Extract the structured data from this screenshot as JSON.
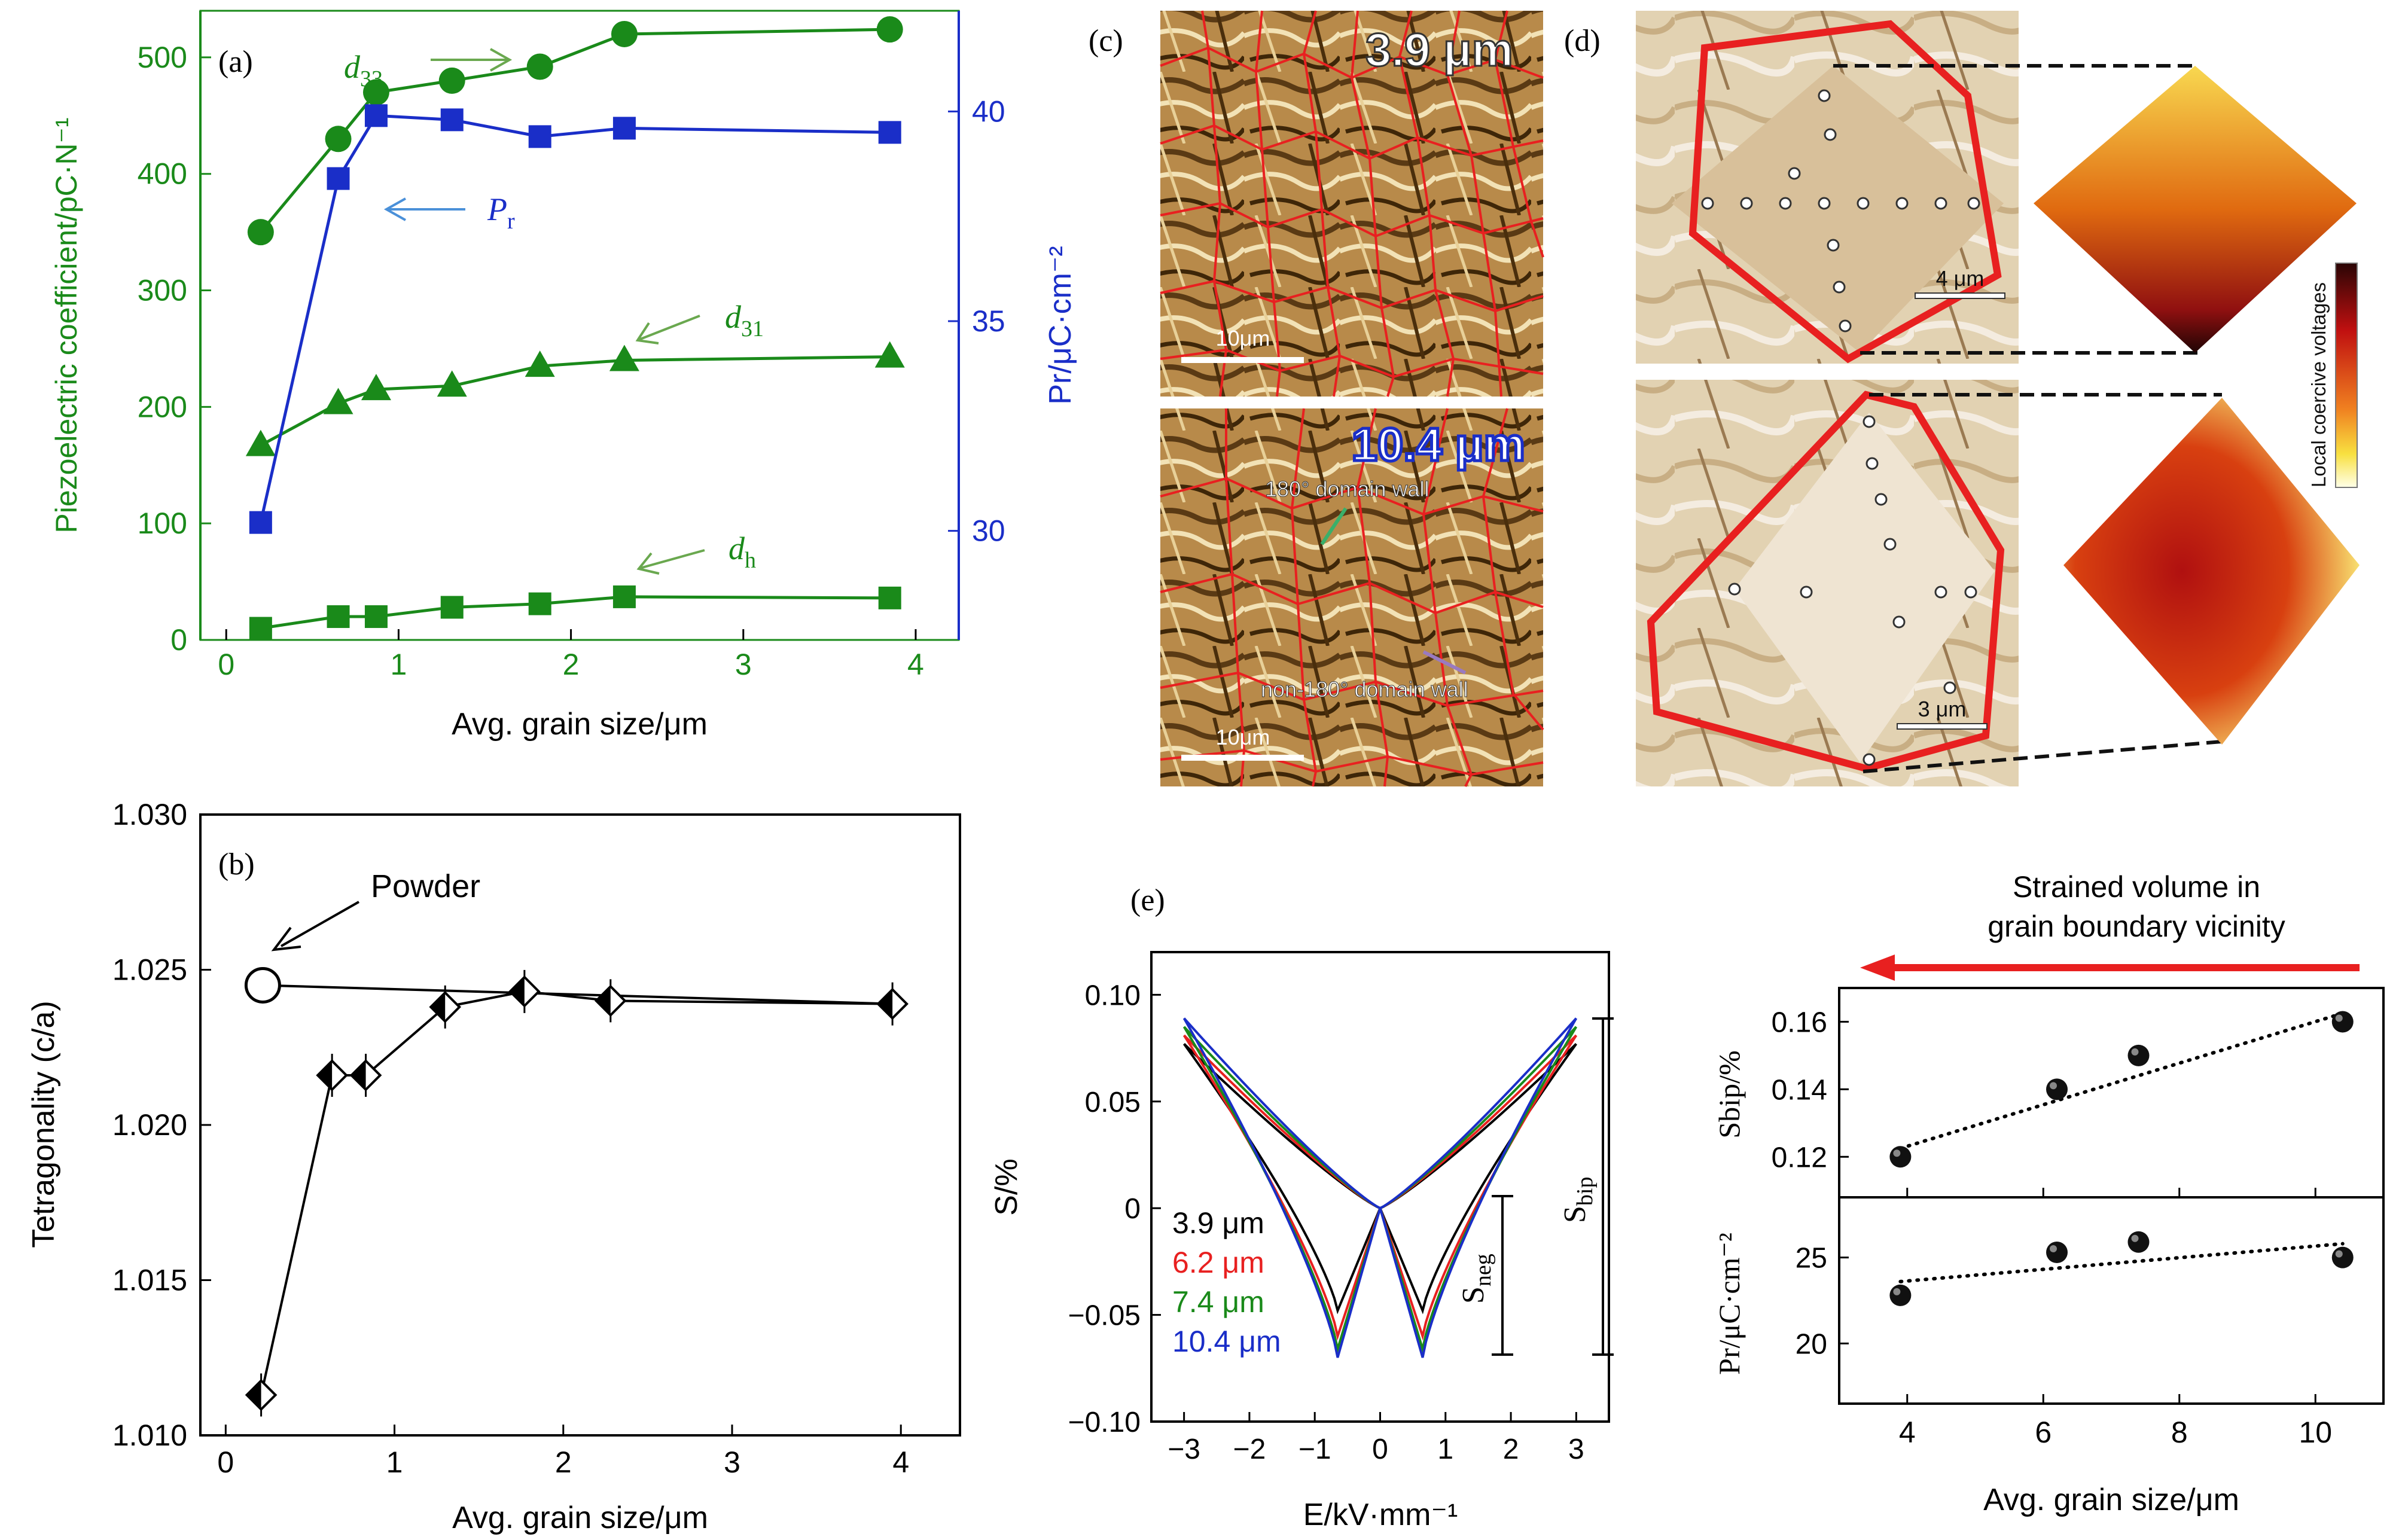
{
  "panel_labels": {
    "a": "(a)",
    "b": "(b)",
    "c": "(c)",
    "d": "(d)",
    "e": "(e)"
  },
  "colors": {
    "green": "#1a8a1a",
    "blue": "#1a2ec8",
    "lightblue": "#4a90d9",
    "red": "#e82020",
    "black": "#000000"
  },
  "chart_data": [
    {
      "id": "a",
      "type": "line",
      "xlabel": "Avg. grain size/μm",
      "ylabel_left": "Piezoelectric coefficient/pC·N⁻¹",
      "ylabel_right": "Pr/μC·cm⁻²",
      "xlim": [
        -0.15,
        4.25
      ],
      "ylim_left": [
        0,
        540
      ],
      "ylim_right": [
        27.4,
        42.4
      ],
      "x_ticks": [
        "0",
        "1",
        "2",
        "3",
        "4"
      ],
      "y_ticks_left": [
        "0",
        "100",
        "200",
        "300",
        "400",
        "500"
      ],
      "y_ticks_right": [
        "30",
        "35",
        "40"
      ],
      "series": [
        {
          "name": "d33",
          "axis": "left",
          "marker": "circle",
          "color": "#1a8a1a",
          "x": [
            0.2,
            0.65,
            0.87,
            1.31,
            1.82,
            2.31,
            3.85
          ],
          "y": [
            350,
            430,
            470,
            480,
            492,
            520,
            524
          ]
        },
        {
          "name": "d31",
          "axis": "left",
          "marker": "triangle",
          "color": "#1a8a1a",
          "x": [
            0.2,
            0.65,
            0.87,
            1.31,
            1.82,
            2.31,
            3.85
          ],
          "y": [
            167,
            203,
            215,
            218,
            235,
            240,
            243
          ]
        },
        {
          "name": "dh",
          "axis": "left",
          "marker": "square",
          "color": "#1a8a1a",
          "x": [
            0.2,
            0.65,
            0.87,
            1.31,
            1.82,
            2.31,
            3.85
          ],
          "y": [
            10,
            20,
            20,
            28,
            31,
            37,
            36
          ]
        },
        {
          "name": "Pr",
          "axis": "right",
          "marker": "square",
          "color": "#1a2ec8",
          "x": [
            0.2,
            0.65,
            0.87,
            1.31,
            1.82,
            2.31,
            3.85
          ],
          "y": [
            30.2,
            38.4,
            39.9,
            39.8,
            39.4,
            39.6,
            39.5
          ]
        }
      ],
      "annotations": [
        {
          "label": "d",
          "sub": "33"
        },
        {
          "label": "P",
          "sub": "r"
        },
        {
          "label": "d",
          "sub": "31"
        },
        {
          "label": "d",
          "sub": "h"
        }
      ]
    },
    {
      "id": "b",
      "type": "line",
      "xlabel": "Avg. grain size/μm",
      "ylabel": "Tetragonality (c/a)",
      "xlim": [
        -0.15,
        4.35
      ],
      "ylim": [
        1.01,
        1.03
      ],
      "x_ticks": [
        "0",
        "1",
        "2",
        "3",
        "4"
      ],
      "y_ticks": [
        "1.010",
        "1.015",
        "1.020",
        "1.025",
        "1.030"
      ],
      "series": [
        {
          "marker": "half-diamond",
          "x": [
            0.21,
            0.63,
            0.83,
            1.3,
            1.77,
            2.28,
            3.95
          ],
          "y": [
            1.0113,
            1.0216,
            1.0216,
            1.0238,
            1.0243,
            1.024,
            1.0239
          ]
        }
      ],
      "powder": {
        "x": 0.22,
        "y": 1.0245
      },
      "annotation": "Powder"
    },
    {
      "id": "e",
      "type": "line",
      "xlabel": "E/kV·mm⁻¹",
      "ylabel": "S/%",
      "xlim": [
        -3.5,
        3.5
      ],
      "ylim": [
        -0.1,
        0.12
      ],
      "x_ticks": [
        "−3",
        "−2",
        "−1",
        "0",
        "1",
        "2",
        "3"
      ],
      "y_ticks": [
        "−0.10",
        "−0.05",
        "0",
        "0.05",
        "0.10"
      ],
      "series": [
        {
          "name": "3.9 μm",
          "color": "#000000",
          "s_max": 0.077,
          "s_neg": -0.048
        },
        {
          "name": "6.2 μm",
          "color": "#e82020",
          "s_max": 0.081,
          "s_neg": -0.06
        },
        {
          "name": "7.4  μm",
          "color": "#1a8a1a",
          "s_max": 0.085,
          "s_neg": -0.066
        },
        {
          "name": "10.4 μm",
          "color": "#1a2ec8",
          "s_max": 0.089,
          "s_neg": -0.07
        }
      ],
      "annotations": [
        {
          "label": "S",
          "sub": "neg"
        },
        {
          "label": "S",
          "sub": "bip"
        }
      ]
    },
    {
      "id": "e-right",
      "type": "scatter",
      "xlabel": "Avg. grain size/μm",
      "xlim": [
        3.0,
        11.0
      ],
      "x_ticks": [
        "4",
        "6",
        "8",
        "10"
      ],
      "title": "Strained volume in grain boundary vicinity",
      "top": {
        "ylabel": "Sbip/%",
        "ylim": [
          0.108,
          0.17
        ],
        "y_ticks": [
          "0.12",
          "0.14",
          "0.16"
        ],
        "x": [
          3.9,
          6.2,
          7.4,
          10.4
        ],
        "y": [
          0.12,
          0.14,
          0.15,
          0.16
        ],
        "fit": [
          0.1225,
          0.1625
        ]
      },
      "bottom": {
        "ylabel": "Pr/μC·cm⁻²",
        "ylim": [
          16.5,
          28.5
        ],
        "y_ticks": [
          "20",
          "25"
        ],
        "x": [
          3.9,
          6.2,
          7.4,
          10.4
        ],
        "y": [
          22.8,
          25.3,
          25.9,
          25.0
        ],
        "fit": [
          23.6,
          25.8
        ]
      }
    }
  ],
  "images": {
    "c_top": {
      "label": "3.9 μm",
      "scalebar": "10μm"
    },
    "c_bottom": {
      "label": "10.4 μm",
      "scalebar": "10μm",
      "wall1": "180° domain wall",
      "wall2": "non-180° domain wall"
    },
    "d_top": {
      "scalebar": "4 μm"
    },
    "d_bottom": {
      "scalebar": "3 μm"
    },
    "colorbar_label": "Local coercive voltages"
  }
}
